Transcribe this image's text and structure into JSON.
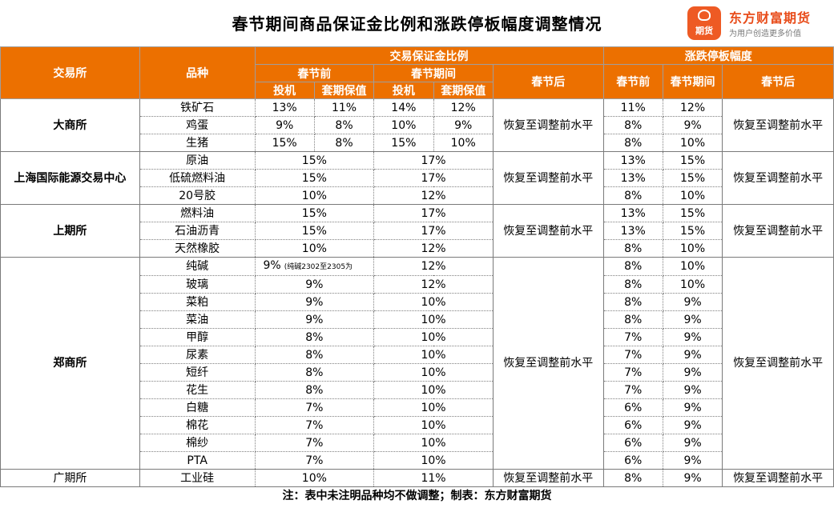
{
  "title": "春节期间商品保证金比例和涨跌停板幅度调整情况",
  "brand": {
    "logo_text": "期货",
    "name": "东方财富期货",
    "slogan": "为用户创造更多价值",
    "accent": "#ec7000"
  },
  "headers": {
    "exchange": "交易所",
    "variety": "品种",
    "margin_group": "交易保证金比例",
    "limit_group": "涨跌停板幅度",
    "before": "春节前",
    "during": "春节期间",
    "after": "春节后",
    "spec": "投机",
    "hedge": "套期保值",
    "limit_before": "春节前",
    "limit_during": "春节期间",
    "limit_after": "春节后"
  },
  "after_text": "恢复至调整前水平",
  "exchanges": {
    "dce": "大商所",
    "ine": "上海国际能源交易中心",
    "shfe": "上期所",
    "czce": "郑商所",
    "gfex": "广期所"
  },
  "rows": [
    {
      "variety": "铁矿石",
      "m_before_spec": "13%",
      "m_before_hedge": "11%",
      "m_during_spec": "14%",
      "m_during_hedge": "12%",
      "l_before": "11%",
      "l_during": "12%"
    },
    {
      "variety": "鸡蛋",
      "m_before_spec": "9%",
      "m_before_hedge": "8%",
      "m_during_spec": "10%",
      "m_during_hedge": "9%",
      "l_before": "8%",
      "l_during": "9%"
    },
    {
      "variety": "生猪",
      "m_before_spec": "15%",
      "m_before_hedge": "8%",
      "m_during_spec": "15%",
      "m_during_hedge": "10%",
      "l_before": "8%",
      "l_during": "10%"
    },
    {
      "variety": "原油",
      "m_before": "15%",
      "m_during": "17%",
      "l_before": "13%",
      "l_during": "15%"
    },
    {
      "variety": "低硫燃料油",
      "m_before": "15%",
      "m_during": "17%",
      "l_before": "13%",
      "l_during": "15%"
    },
    {
      "variety": "20号胶",
      "m_before": "10%",
      "m_during": "12%",
      "l_before": "8%",
      "l_during": "10%"
    },
    {
      "variety": "燃料油",
      "m_before": "15%",
      "m_during": "17%",
      "l_before": "13%",
      "l_during": "15%"
    },
    {
      "variety": "石油沥青",
      "m_before": "15%",
      "m_during": "17%",
      "l_before": "13%",
      "l_during": "15%"
    },
    {
      "variety": "天然橡胶",
      "m_before": "10%",
      "m_during": "12%",
      "l_before": "8%",
      "l_during": "10%"
    },
    {
      "variety": "纯碱",
      "m_before": "9%",
      "m_before_note": "(纯碱2302至2305为",
      "m_during": "12%",
      "l_before": "8%",
      "l_during": "10%"
    },
    {
      "variety": "玻璃",
      "m_before": "9%",
      "m_during": "12%",
      "l_before": "8%",
      "l_during": "10%"
    },
    {
      "variety": "菜粕",
      "m_before": "9%",
      "m_during": "10%",
      "l_before": "8%",
      "l_during": "9%"
    },
    {
      "variety": "菜油",
      "m_before": "9%",
      "m_during": "10%",
      "l_before": "8%",
      "l_during": "9%"
    },
    {
      "variety": "甲醇",
      "m_before": "8%",
      "m_during": "10%",
      "l_before": "7%",
      "l_during": "9%"
    },
    {
      "variety": "尿素",
      "m_before": "8%",
      "m_during": "10%",
      "l_before": "7%",
      "l_during": "9%"
    },
    {
      "variety": "短纤",
      "m_before": "8%",
      "m_during": "10%",
      "l_before": "7%",
      "l_during": "9%"
    },
    {
      "variety": "花生",
      "m_before": "8%",
      "m_during": "10%",
      "l_before": "7%",
      "l_during": "9%"
    },
    {
      "variety": "白糖",
      "m_before": "7%",
      "m_during": "10%",
      "l_before": "6%",
      "l_during": "9%"
    },
    {
      "variety": "棉花",
      "m_before": "7%",
      "m_during": "10%",
      "l_before": "6%",
      "l_during": "9%"
    },
    {
      "variety": "棉纱",
      "m_before": "7%",
      "m_during": "10%",
      "l_before": "6%",
      "l_during": "9%"
    },
    {
      "variety": "PTA",
      "m_before": "7%",
      "m_during": "10%",
      "l_before": "6%",
      "l_during": "9%"
    },
    {
      "variety": "工业硅",
      "m_before": "10%",
      "m_during": "11%",
      "l_before": "8%",
      "l_during": "9%"
    }
  ],
  "footer": "注：表中未注明品种均不做调整；制表：东方财富期货"
}
